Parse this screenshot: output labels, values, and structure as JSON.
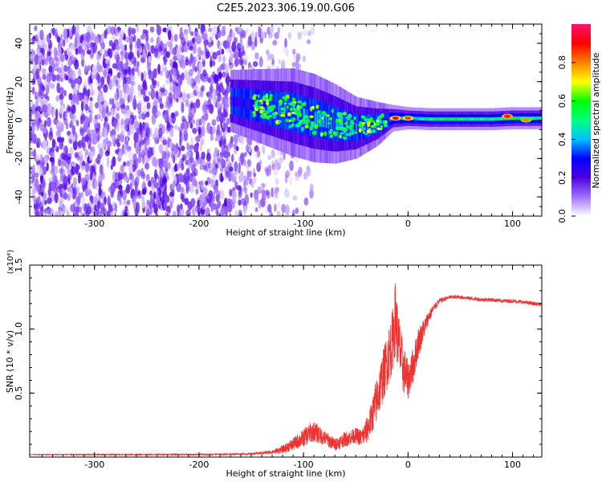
{
  "title": "C2E5.2023.306.19.00.G06",
  "chart_data": [
    {
      "type": "heatmap",
      "xlabel": "Height of straight line (km)",
      "ylabel": "Frequency (Hz)",
      "xlim": [
        -362,
        128
      ],
      "ylim": [
        -50,
        50
      ],
      "xticks": [
        -300,
        -200,
        -100,
        0,
        100
      ],
      "xtick_labels": [
        "-300",
        "-200",
        "-100",
        "0",
        "100"
      ],
      "yticks": [
        -40,
        -20,
        0,
        20,
        40
      ],
      "ytick_labels": [
        "-40",
        "-20",
        "0",
        "20",
        "40"
      ],
      "colorbar": {
        "label": "Normalized spectral amplitude",
        "range": [
          0,
          1
        ],
        "ticks": [
          0,
          0.2,
          0.4,
          0.6,
          0.8
        ],
        "tick_labels": [
          "0.0",
          "0.2",
          "0.4",
          "0.6",
          "0.8"
        ],
        "colors": [
          "#ffffff",
          "#a070ff",
          "#5000e0",
          "#0000ff",
          "#00c0ff",
          "#00ff80",
          "#00ff00",
          "#ffff00",
          "#ff8000",
          "#ff0000",
          "#ff1070"
        ]
      },
      "noise_region": {
        "x": [
          -362,
          -135
        ],
        "y": [
          -50,
          48
        ],
        "amplitude": 0.2
      },
      "signal_track": [
        {
          "x": -170,
          "center": 10,
          "halfwidth": 7,
          "amplitude": 0.25
        },
        {
          "x": -150,
          "center": 8,
          "halfwidth": 8,
          "amplitude": 0.3
        },
        {
          "x": -130,
          "center": 6,
          "halfwidth": 9,
          "amplitude": 0.33
        },
        {
          "x": -110,
          "center": 4,
          "halfwidth": 10,
          "amplitude": 0.35
        },
        {
          "x": -90,
          "center": 1,
          "halfwidth": 10,
          "amplitude": 0.35
        },
        {
          "x": -70,
          "center": -2,
          "halfwidth": 9,
          "amplitude": 0.35
        },
        {
          "x": -50,
          "center": -4,
          "halfwidth": 7,
          "amplitude": 0.35
        },
        {
          "x": -30,
          "center": -2,
          "halfwidth": 5,
          "amplitude": 0.33
        },
        {
          "x": -15,
          "center": 1,
          "halfwidth": 3,
          "amplitude": 0.35
        },
        {
          "x": 0,
          "center": 1,
          "halfwidth": 2.5,
          "amplitude": 0.4
        },
        {
          "x": 20,
          "center": 0.5,
          "halfwidth": 2.5,
          "amplitude": 0.5
        },
        {
          "x": 40,
          "center": 0.5,
          "halfwidth": 2.5,
          "amplitude": 0.55
        },
        {
          "x": 60,
          "center": 0.5,
          "halfwidth": 2.5,
          "amplitude": 0.5
        },
        {
          "x": 80,
          "center": 0.5,
          "halfwidth": 2.5,
          "amplitude": 0.5
        },
        {
          "x": 100,
          "center": 1,
          "halfwidth": 2.5,
          "amplitude": 0.55
        },
        {
          "x": 128,
          "center": 1,
          "halfwidth": 2.5,
          "amplitude": 0.5
        }
      ],
      "peaks": [
        {
          "x": -12,
          "y": 1,
          "amplitude": 0.9
        },
        {
          "x": 0,
          "y": 1,
          "amplitude": 0.85
        },
        {
          "x": 95,
          "y": 2,
          "amplitude": 0.95
        },
        {
          "x": 113,
          "y": 0,
          "amplitude": 0.8
        }
      ]
    },
    {
      "type": "line",
      "xlabel": "Height of straight line (km)",
      "ylabel": "SNR (10 * v/v)",
      "yscale_label": "(x10⁴)",
      "xlim": [
        -362,
        128
      ],
      "ylim": [
        0,
        1.5
      ],
      "xticks": [
        -300,
        -200,
        -100,
        0,
        100
      ],
      "xtick_labels": [
        "-300",
        "-200",
        "-100",
        "0",
        "100"
      ],
      "yticks": [
        0.5,
        1.0,
        1.5
      ],
      "ytick_labels": [
        "0.5",
        "1.0",
        "1.5"
      ],
      "series": [
        {
          "color": "#ee3333",
          "x": [
            -362,
            -300,
            -250,
            -200,
            -150,
            -130,
            -120,
            -110,
            -100,
            -95,
            -90,
            -80,
            -70,
            -60,
            -50,
            -45,
            -40,
            -35,
            -30,
            -25,
            -20,
            -15,
            -12,
            -10,
            -5,
            0,
            5,
            10,
            15,
            20,
            25,
            30,
            40,
            50,
            60,
            70,
            80,
            90,
            100,
            110,
            120,
            128
          ],
          "y": [
            0.02,
            0.02,
            0.02,
            0.02,
            0.025,
            0.04,
            0.06,
            0.1,
            0.15,
            0.18,
            0.2,
            0.15,
            0.1,
            0.14,
            0.17,
            0.15,
            0.2,
            0.3,
            0.45,
            0.6,
            0.75,
            0.9,
            1.1,
            0.95,
            0.7,
            0.6,
            0.72,
            0.9,
            1.0,
            1.1,
            1.17,
            1.22,
            1.25,
            1.25,
            1.24,
            1.23,
            1.23,
            1.22,
            1.22,
            1.21,
            1.2,
            1.19
          ],
          "noise": [
            0.002,
            0.004,
            0.004,
            0.005,
            0.007,
            0.015,
            0.03,
            0.05,
            0.07,
            0.08,
            0.08,
            0.06,
            0.05,
            0.06,
            0.06,
            0.07,
            0.1,
            0.13,
            0.18,
            0.2,
            0.22,
            0.25,
            0.3,
            0.25,
            0.2,
            0.15,
            0.14,
            0.12,
            0.08,
            0.05,
            0.03,
            0.02,
            0.015,
            0.015,
            0.015,
            0.015,
            0.015,
            0.015,
            0.015,
            0.015,
            0.015,
            0.015
          ]
        }
      ]
    }
  ]
}
